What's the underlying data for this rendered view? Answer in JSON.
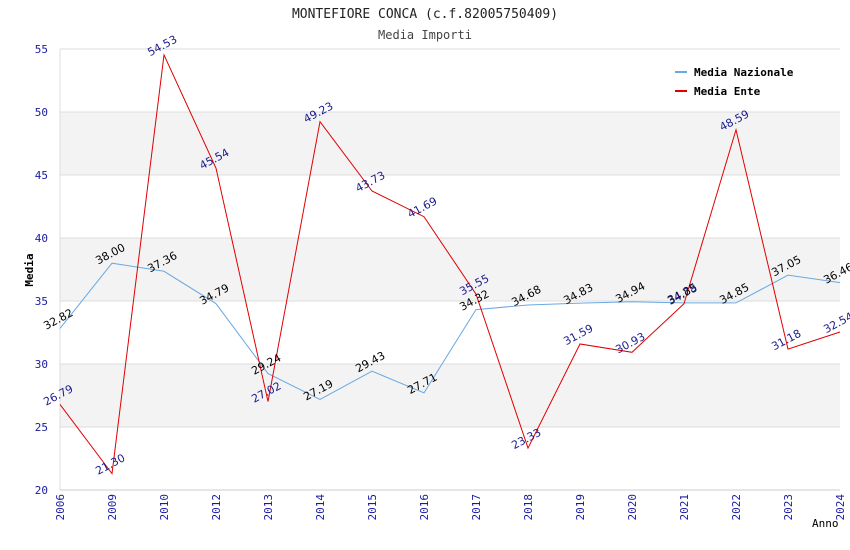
{
  "chart_data": {
    "type": "line",
    "title": "MONTEFIORE CONCA (c.f.82005750409)",
    "subtitle": "Media Importi",
    "ylabel": "Media",
    "xlabel": "Anno",
    "categories": [
      "2006",
      "2009",
      "2010",
      "2012",
      "2013",
      "2014",
      "2015",
      "2016",
      "2017",
      "2018",
      "2019",
      "2020",
      "2021",
      "2022",
      "2023",
      "2024"
    ],
    "ylim": [
      20,
      55
    ],
    "yticks": [
      20,
      25,
      30,
      35,
      40,
      45,
      50,
      55
    ],
    "grid": true,
    "legend_position": "top-right",
    "series": [
      {
        "name": "Media Nazionale",
        "color": "#6aa8e0",
        "label_color": "#000000",
        "values": [
          32.82,
          38.0,
          37.36,
          34.79,
          29.24,
          27.19,
          29.43,
          27.71,
          34.32,
          34.68,
          34.83,
          34.94,
          34.85,
          34.85,
          37.05,
          36.46
        ],
        "labels": [
          "32.82",
          "38.00",
          "37.36",
          "34.79",
          "29.24",
          "27.19",
          "29.43",
          "27.71",
          "34.32",
          "34.68",
          "34.83",
          "34.94",
          "34.85",
          "34.85",
          "37.05",
          "36.46"
        ]
      },
      {
        "name": "Media Ente",
        "color": "#e00000",
        "label_color": "#1a1a8c",
        "values": [
          26.79,
          21.3,
          54.53,
          45.54,
          27.02,
          49.23,
          43.73,
          41.69,
          35.55,
          23.33,
          31.59,
          30.93,
          34.78,
          48.59,
          31.18,
          32.54
        ],
        "labels": [
          "26.79",
          "21.30",
          "54.53",
          "45.54",
          "27.02",
          "49.23",
          "43.73",
          "41.69",
          "35.55",
          "23.33",
          "31.59",
          "30.93",
          "34.78",
          "48.59",
          "31.18",
          "32.54"
        ]
      }
    ]
  }
}
